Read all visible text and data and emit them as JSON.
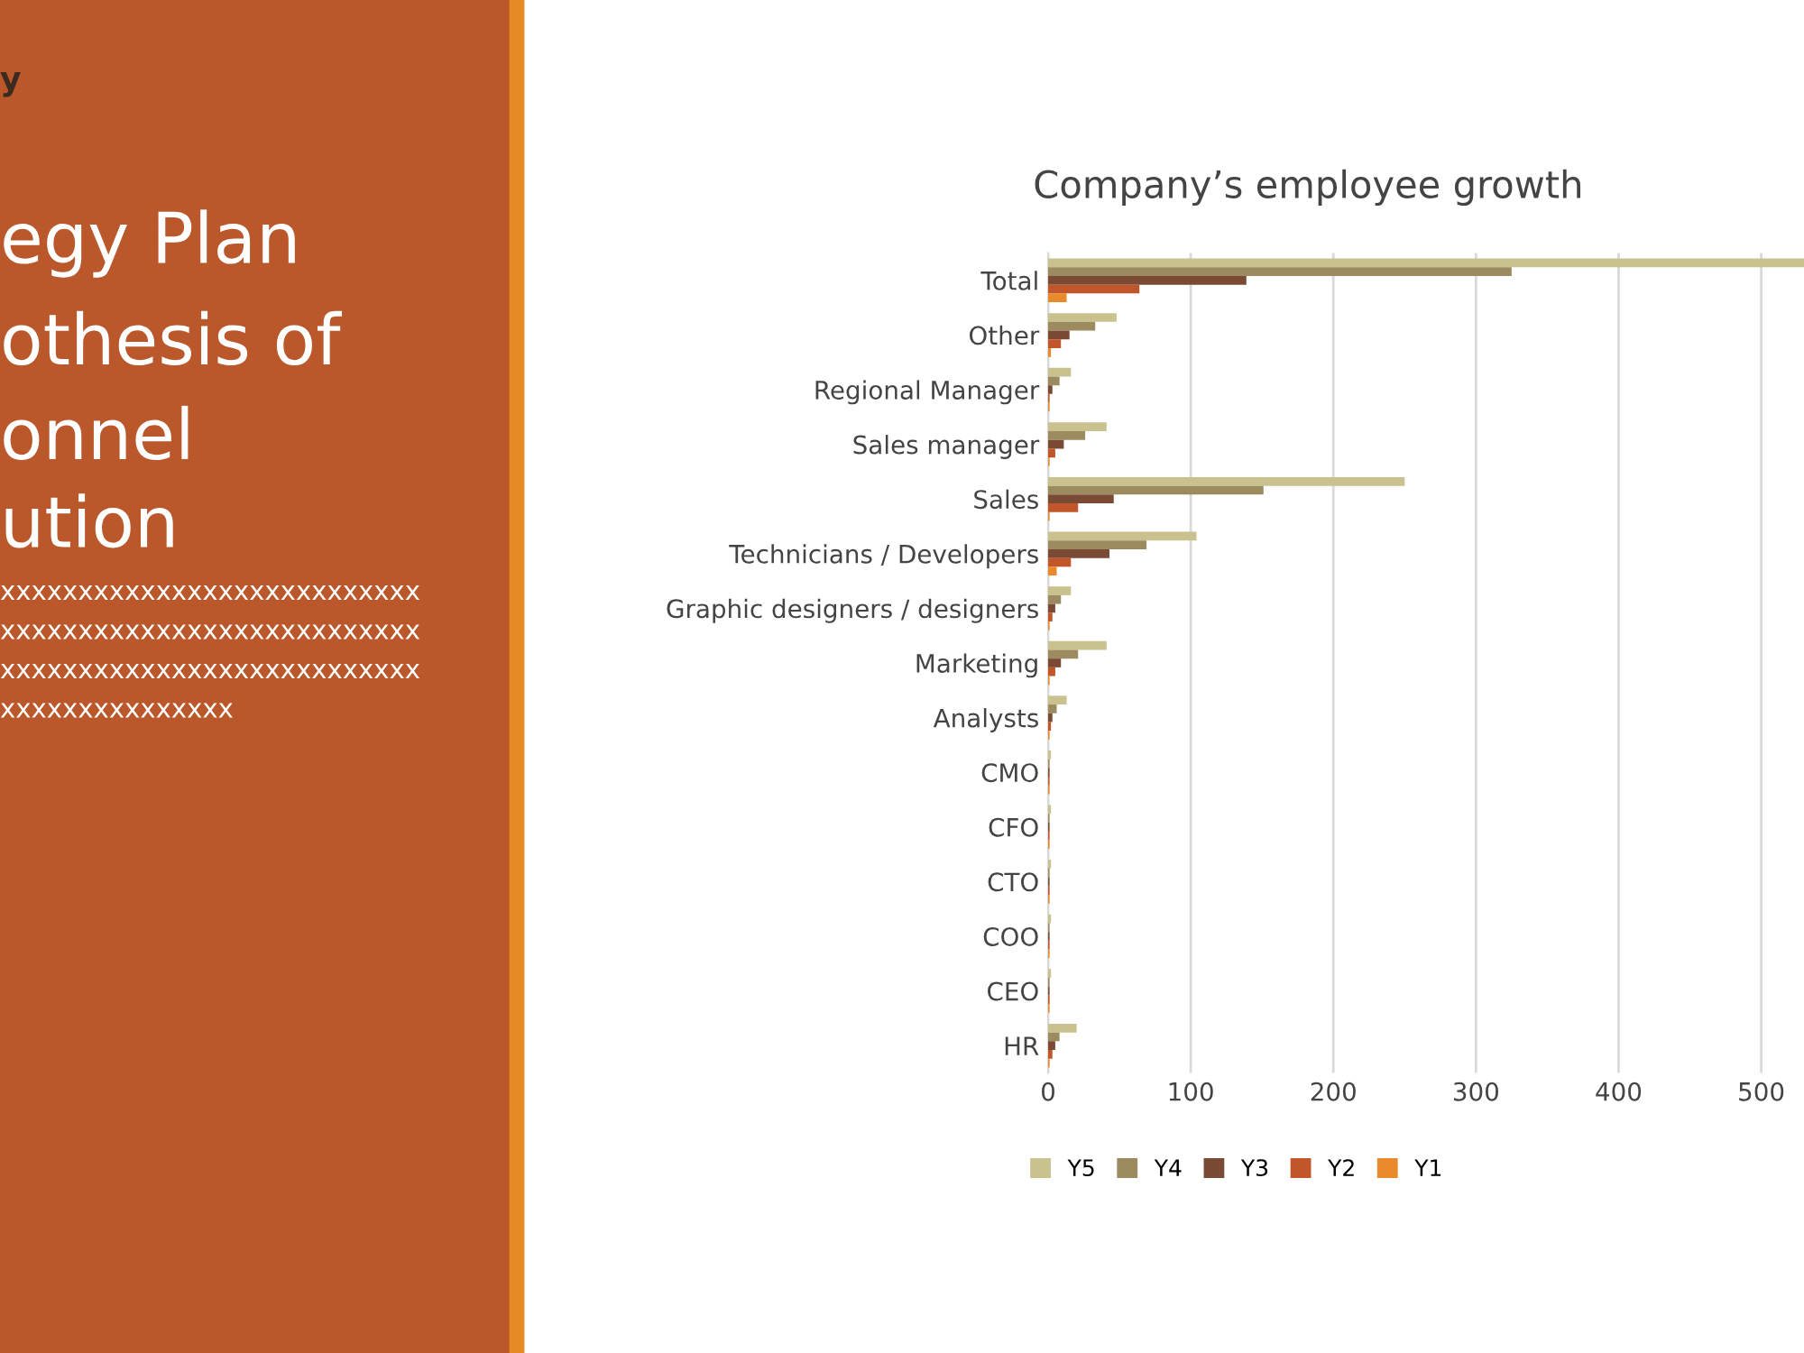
{
  "chart_data": {
    "type": "bar",
    "orientation": "horizontal",
    "title": "Company’s employee growth",
    "categories": [
      "Total",
      "Other",
      "Regional Manager",
      "Sales manager",
      "Sales",
      "Technicians / Developers",
      "Graphic designers / designers",
      "Marketing",
      "Analysts",
      "CMO",
      "CFO",
      "CTO",
      "COO",
      "CEO",
      "HR"
    ],
    "series": [
      {
        "name": "Y5",
        "color": "#c9c28f",
        "values": [
          530,
          48,
          16,
          41,
          250,
          104,
          16,
          41,
          13,
          2,
          2,
          2,
          2,
          2,
          20
        ]
      },
      {
        "name": "Y4",
        "color": "#9c8b5e",
        "values": [
          325,
          33,
          8,
          26,
          151,
          69,
          9,
          21,
          6,
          1,
          1,
          1,
          1,
          1,
          8
        ]
      },
      {
        "name": "Y3",
        "color": "#7a4a35",
        "values": [
          139,
          15,
          3,
          11,
          46,
          43,
          5,
          9,
          3,
          1,
          1,
          1,
          1,
          1,
          5
        ]
      },
      {
        "name": "Y2",
        "color": "#c0562a",
        "values": [
          64,
          9,
          1,
          5,
          21,
          16,
          3,
          5,
          2,
          1,
          1,
          1,
          1,
          1,
          3
        ]
      },
      {
        "name": "Y1",
        "color": "#e8892b",
        "values": [
          13,
          2,
          1,
          1,
          1,
          6,
          1,
          1,
          1,
          1,
          1,
          1,
          1,
          1,
          1
        ]
      }
    ],
    "xlim": [
      0,
      530
    ],
    "xticks": [
      0,
      100,
      200,
      300,
      400,
      500
    ],
    "grid": "x",
    "legend": "bottom",
    "annotations": [
      "y",
      "egy Plan",
      "othesis of",
      "onnel",
      "ution",
      "xxxxxxxxxxxxxxxxxxxxxxxxxxx",
      "xxxxxxxxxxxxxxxxxxxxxxxxxxx",
      "xxxxxxxxxxxxxxxxxxxxxxxxxxx",
      "xxxxxxxxxxxxxxx"
    ]
  }
}
